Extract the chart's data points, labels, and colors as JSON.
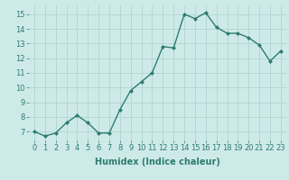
{
  "x": [
    0,
    1,
    2,
    3,
    4,
    5,
    6,
    7,
    8,
    9,
    10,
    11,
    12,
    13,
    14,
    15,
    16,
    17,
    18,
    19,
    20,
    21,
    22,
    23
  ],
  "y": [
    7.0,
    6.7,
    6.9,
    7.6,
    8.1,
    7.6,
    6.9,
    6.9,
    8.5,
    9.8,
    10.4,
    11.0,
    12.8,
    12.7,
    15.0,
    14.7,
    15.1,
    14.1,
    13.7,
    13.7,
    13.4,
    12.9,
    11.8,
    12.5
  ],
  "line_color": "#2d7d6e",
  "marker": "D",
  "markersize": 2.0,
  "linewidth": 1.0,
  "bg_color": "#ceeae8",
  "grid_color": "#b0d5d2",
  "xlabel": "Humidex (Indice chaleur)",
  "xlabel_fontsize": 7,
  "tick_fontsize": 6,
  "ylim": [
    6.4,
    15.6
  ],
  "xlim": [
    -0.5,
    23.5
  ],
  "yticks": [
    7,
    8,
    9,
    10,
    11,
    12,
    13,
    14,
    15
  ],
  "xticks": [
    0,
    1,
    2,
    3,
    4,
    5,
    6,
    7,
    8,
    9,
    10,
    11,
    12,
    13,
    14,
    15,
    16,
    17,
    18,
    19,
    20,
    21,
    22,
    23
  ],
  "xtick_labels": [
    "0",
    "1",
    "2",
    "3",
    "4",
    "5",
    "6",
    "7",
    "8",
    "9",
    "10",
    "11",
    "12",
    "13",
    "14",
    "15",
    "16",
    "17",
    "18",
    "19",
    "20",
    "21",
    "22",
    "23"
  ]
}
